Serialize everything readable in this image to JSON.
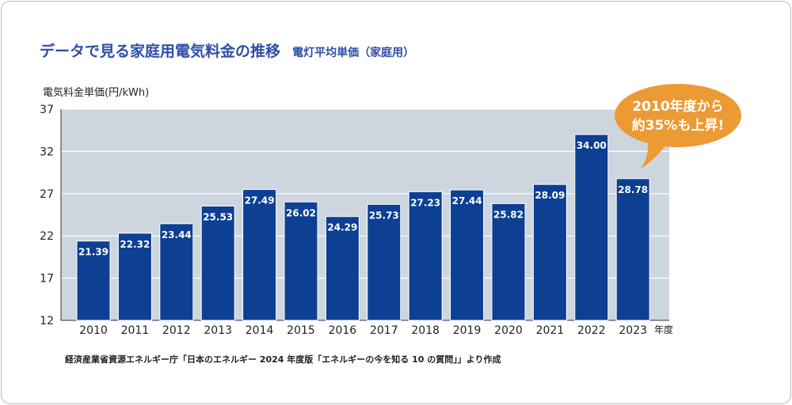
{
  "header": {
    "title": "データで見る家庭用電気料金の推移",
    "subtitle": "電灯平均単価（家庭用）"
  },
  "source_note": "経済産業省資源エネルギー庁「日本のエネルギー 2024 年度版「エネルギーの今を知る 10 の質問」」より作成",
  "callout": {
    "line1": "2010年度から",
    "line2": "約35%も上昇!",
    "color": "#ec9a33"
  },
  "colors": {
    "bar": "#0d3f93",
    "plot_bg": "#cdd5de",
    "title": "#2e4fa8"
  },
  "chart_data": {
    "type": "bar",
    "title": "データで見る家庭用電気料金の推移",
    "ylabel": "電気料金単価(円/kWh)",
    "xlabel": "年度",
    "ylim": [
      12,
      37
    ],
    "yticks": [
      12,
      17,
      22,
      27,
      32,
      37
    ],
    "categories": [
      "2010",
      "2011",
      "2012",
      "2013",
      "2014",
      "2015",
      "2016",
      "2017",
      "2018",
      "2019",
      "2020",
      "2021",
      "2022",
      "2023"
    ],
    "values": [
      21.39,
      22.32,
      23.44,
      25.53,
      27.49,
      26.02,
      24.29,
      25.73,
      27.23,
      27.44,
      25.82,
      28.09,
      34.0,
      28.78
    ],
    "value_labels": [
      "21.39",
      "22.32",
      "23.44",
      "25.53",
      "27.49",
      "26.02",
      "24.29",
      "25.73",
      "27.23",
      "27.44",
      "25.82",
      "28.09",
      "34.00",
      "28.78"
    ],
    "grid": true
  }
}
